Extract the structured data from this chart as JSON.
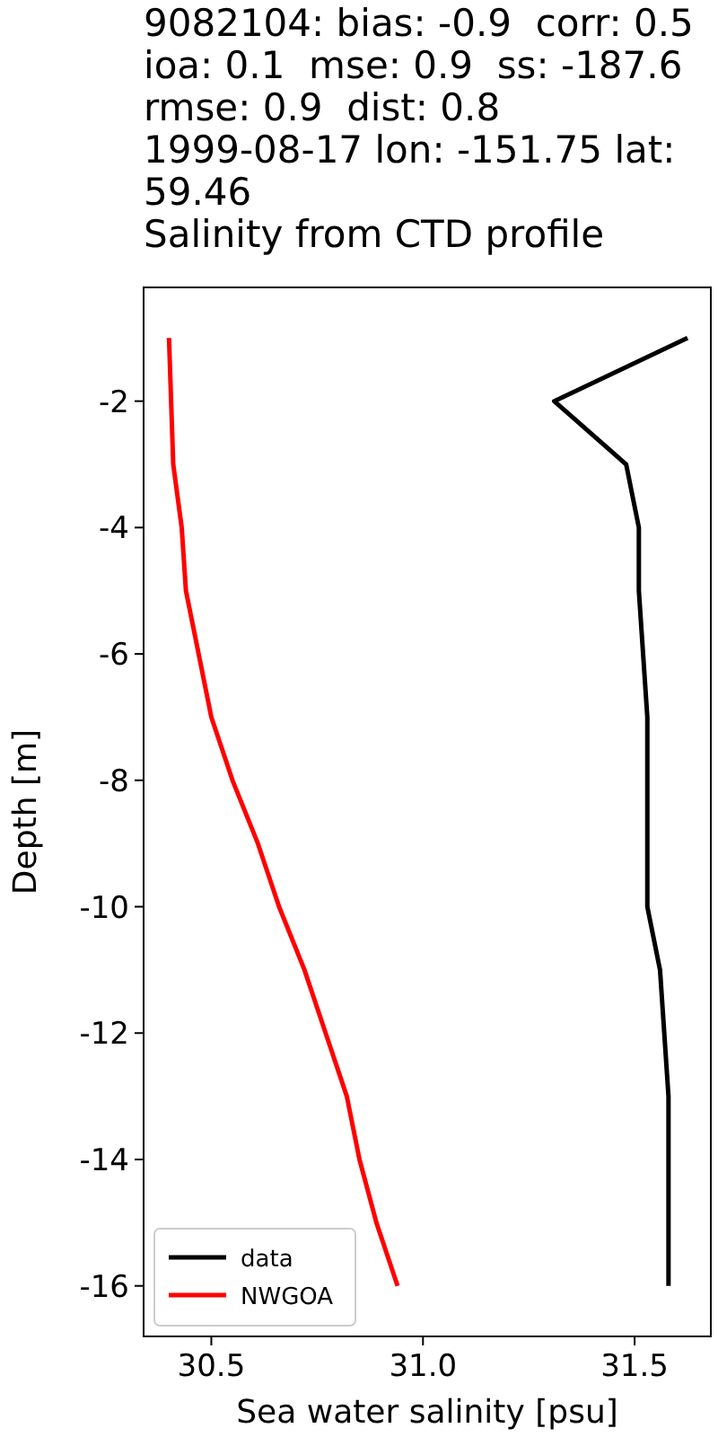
{
  "chart_data": {
    "type": "line",
    "title": "9082104: bias: -0.9  corr: 0.5  ioa: 0.1  mse: 0.9  ss: -187.6  rmse: 0.9  dist: 0.8  1999-08-17 lon: -151.75 lat: 59.46",
    "subtitle": "Salinity from CTD profile",
    "xlabel": "Sea water salinity [psu]",
    "ylabel": "Depth [m]",
    "xlim": [
      30.34,
      31.68
    ],
    "ylim": [
      -16.8,
      -0.2
    ],
    "xticks": [
      30.5,
      {
        "value": 31,
        "label": "31.0"
      },
      31.5
    ],
    "yticks": [
      -2,
      -4,
      -6,
      -8,
      -10,
      -12,
      -14,
      -16
    ],
    "grid": false,
    "legend": "bottom left",
    "marker": "none",
    "line_style": "solid",
    "series": [
      {
        "name": "data",
        "color": "#000000",
        "x": [
          31.625,
          31.31,
          31.48,
          31.51,
          31.51,
          31.53,
          31.53,
          31.53,
          31.56,
          31.57,
          31.58,
          31.58,
          31.58
        ],
        "values": [
          -1,
          -2,
          -3,
          -4,
          -5,
          -7,
          -9,
          -10,
          -11,
          -12,
          -13,
          -15,
          -16
        ]
      },
      {
        "name": "NWGOA",
        "color": "#ff0000",
        "x": [
          30.4,
          30.41,
          30.43,
          30.44,
          30.47,
          30.5,
          30.55,
          30.61,
          30.66,
          30.72,
          30.77,
          30.82,
          30.85,
          30.89,
          30.94
        ],
        "values": [
          -1,
          -3,
          -4,
          -5,
          -6,
          -7,
          -8,
          -9,
          -10,
          -11,
          -12,
          -13,
          -14,
          -15,
          -16
        ]
      }
    ]
  }
}
